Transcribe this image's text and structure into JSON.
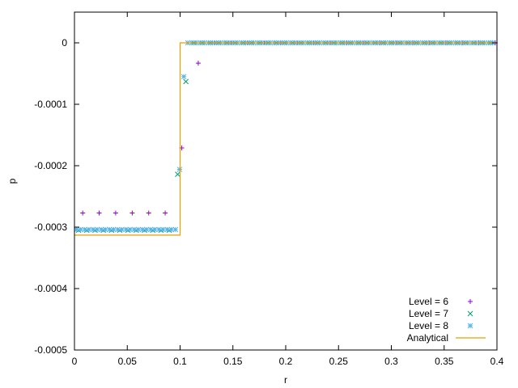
{
  "chart_data": {
    "type": "scatter",
    "title": "",
    "xlabel": "r",
    "ylabel": "p",
    "xlim": [
      0,
      0.4
    ],
    "ylim": [
      -0.0005,
      5e-05
    ],
    "x_ticks": [
      0,
      0.05,
      0.1,
      0.15,
      0.2,
      0.25,
      0.3,
      0.35,
      0.4
    ],
    "x_tick_labels": [
      "0",
      "0.05",
      "0.1",
      "0.15",
      "0.2",
      "0.25",
      "0.3",
      "0.35",
      "0.4"
    ],
    "y_ticks": [
      0,
      -0.0001,
      -0.0002,
      -0.0003,
      -0.0004,
      -0.0005
    ],
    "y_tick_labels": [
      "0",
      "-0.0001",
      "-0.0002",
      "-0.0003",
      "-0.0004",
      "-0.0005"
    ],
    "grid": false,
    "legend_position": "bottom-right",
    "series": [
      {
        "name": "Level = 6",
        "marker": "plus",
        "color": "#9400d3",
        "points": [
          [
            0.0078,
            -0.000277
          ],
          [
            0.0234,
            -0.000277
          ],
          [
            0.039,
            -0.000277
          ],
          [
            0.0547,
            -0.000277
          ],
          [
            0.0703,
            -0.000277
          ],
          [
            0.0859,
            -0.000277
          ],
          [
            0.1016,
            -0.000171
          ],
          [
            0.1172,
            -3.3e-05
          ],
          [
            0.1328,
            0
          ],
          [
            0.1484,
            0
          ],
          [
            0.1641,
            0
          ],
          [
            0.1797,
            0
          ],
          [
            0.1953,
            0
          ],
          [
            0.2109,
            0
          ],
          [
            0.2266,
            0
          ],
          [
            0.2422,
            0
          ],
          [
            0.2578,
            0
          ],
          [
            0.2734,
            0
          ],
          [
            0.2891,
            0
          ],
          [
            0.3047,
            0
          ],
          [
            0.3203,
            0
          ],
          [
            0.3359,
            0
          ],
          [
            0.3516,
            0
          ],
          [
            0.3672,
            0
          ],
          [
            0.3828,
            0
          ],
          [
            0.3984,
            0
          ]
        ]
      },
      {
        "name": "Level = 7",
        "marker": "cross",
        "color": "#009e73",
        "x_start": 0.0039,
        "x_step": 0.0078,
        "count": 51,
        "inside_value": -0.000305,
        "outside_value": 0,
        "transition": [
          [
            0.0977,
            -0.000214
          ],
          [
            0.1055,
            -6.3e-05
          ]
        ]
      },
      {
        "name": "Level = 8",
        "marker": "star",
        "color": "#56b4e9",
        "x_start": 0.002,
        "x_step": 0.0039,
        "count": 102,
        "inside_value": -0.000304,
        "outside_value": 0,
        "transition": [
          [
            0.0996,
            -0.000206
          ],
          [
            0.1035,
            -5.5e-05
          ]
        ]
      },
      {
        "name": "Analytical",
        "style": "line",
        "color": "#e69f00",
        "points": [
          [
            0,
            -0.000313
          ],
          [
            0.1,
            -0.000313
          ],
          [
            0.1,
            0
          ],
          [
            0.4,
            0
          ]
        ]
      }
    ]
  }
}
